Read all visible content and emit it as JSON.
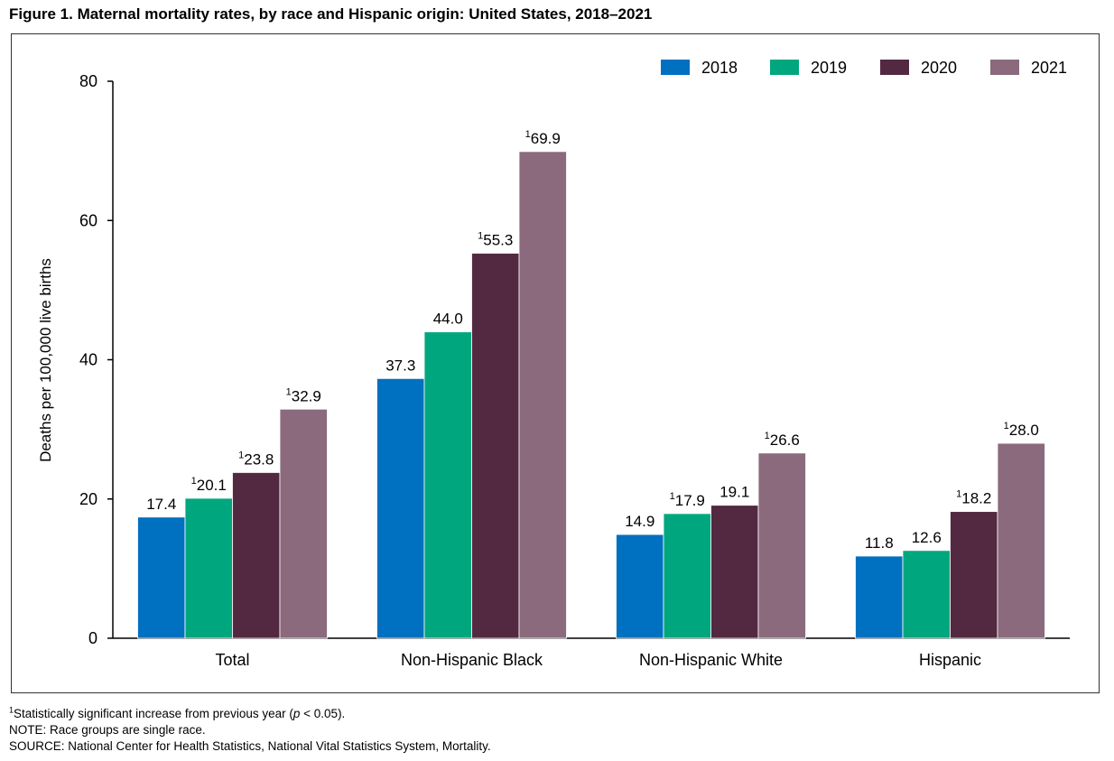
{
  "figure_title": "Figure 1. Maternal mortality rates, by race and Hispanic origin: United States, 2018–2021",
  "footnotes": {
    "significance_marker": "1",
    "significance_text_before": "Statistically significant increase from previous year (",
    "significance_p": "p",
    "significance_text_after": " < 0.05).",
    "note": "NOTE: Race groups are single race.",
    "source": "SOURCE: National Center for Health Statistics, National Vital Statistics System, Mortality."
  },
  "chart_data": {
    "type": "bar",
    "title": "",
    "xlabel": "",
    "ylabel": "Deaths per 100,000 live births",
    "ylim": [
      0,
      80
    ],
    "yticks": [
      0,
      20,
      40,
      60,
      80
    ],
    "grid": false,
    "legend_position": "top-right",
    "categories": [
      "Total",
      "Non-Hispanic Black",
      "Non-Hispanic White",
      "Hispanic"
    ],
    "series": [
      {
        "name": "2018",
        "color": "#0070c0",
        "values": [
          17.4,
          37.3,
          14.9,
          11.8
        ],
        "significant": [
          false,
          false,
          false,
          false
        ]
      },
      {
        "name": "2019",
        "color": "#00a77e",
        "values": [
          20.1,
          44.0,
          17.9,
          12.6
        ],
        "significant": [
          true,
          false,
          true,
          false
        ]
      },
      {
        "name": "2020",
        "color": "#532942",
        "values": [
          23.8,
          55.3,
          19.1,
          18.2
        ],
        "significant": [
          true,
          true,
          false,
          true
        ]
      },
      {
        "name": "2021",
        "color": "#8a6a7c",
        "values": [
          32.9,
          69.9,
          26.6,
          28.0
        ],
        "significant": [
          true,
          true,
          true,
          true
        ]
      }
    ],
    "significance_marker": "1"
  }
}
